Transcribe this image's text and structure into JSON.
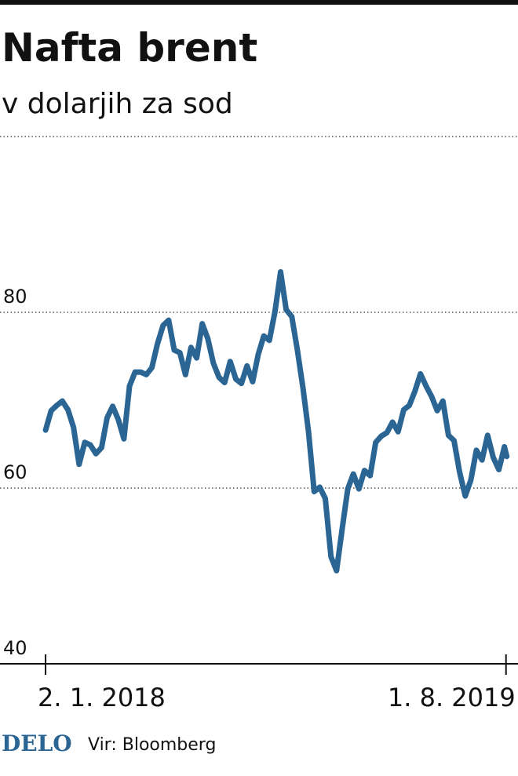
{
  "chart_data": {
    "type": "line",
    "title": "Nafta brent",
    "subtitle": "v dolarjih za sod",
    "source": "Vir: Bloomberg",
    "logo": "DELO",
    "x": [
      "2018-01-02",
      "2018-01-09",
      "2018-01-16",
      "2018-01-23",
      "2018-01-30",
      "2018-02-06",
      "2018-02-13",
      "2018-02-20",
      "2018-02-27",
      "2018-03-06",
      "2018-03-13",
      "2018-03-20",
      "2018-03-27",
      "2018-04-03",
      "2018-04-10",
      "2018-04-17",
      "2018-04-24",
      "2018-05-01",
      "2018-05-08",
      "2018-05-15",
      "2018-05-22",
      "2018-05-29",
      "2018-06-05",
      "2018-06-12",
      "2018-06-19",
      "2018-06-26",
      "2018-07-03",
      "2018-07-10",
      "2018-07-17",
      "2018-07-24",
      "2018-07-31",
      "2018-08-07",
      "2018-08-14",
      "2018-08-21",
      "2018-08-28",
      "2018-09-04",
      "2018-09-11",
      "2018-09-18",
      "2018-09-25",
      "2018-10-02",
      "2018-10-09",
      "2018-10-16",
      "2018-10-23",
      "2018-10-30",
      "2018-11-06",
      "2018-11-13",
      "2018-11-20",
      "2018-11-27",
      "2018-12-04",
      "2018-12-11",
      "2018-12-18",
      "2018-12-25",
      "2019-01-01",
      "2019-01-08",
      "2019-01-15",
      "2019-01-22",
      "2019-01-29",
      "2019-02-05",
      "2019-02-12",
      "2019-02-19",
      "2019-02-26",
      "2019-03-05",
      "2019-03-12",
      "2019-03-19",
      "2019-03-26",
      "2019-04-02",
      "2019-04-09",
      "2019-04-16",
      "2019-04-23",
      "2019-04-30",
      "2019-05-07",
      "2019-05-14",
      "2019-05-21",
      "2019-05-28",
      "2019-06-04",
      "2019-06-11",
      "2019-06-18",
      "2019-06-25",
      "2019-07-02",
      "2019-07-09",
      "2019-07-16",
      "2019-07-23",
      "2019-07-30",
      "2019-08-02"
    ],
    "series": [
      {
        "color": "#2b6594",
        "values": [
          66.6,
          68.8,
          69.4,
          69.9,
          68.9,
          66.9,
          62.7,
          65.2,
          64.9,
          63.9,
          64.6,
          68.0,
          69.3,
          67.8,
          65.6,
          71.6,
          73.2,
          73.2,
          72.9,
          73.7,
          76.4,
          78.5,
          79.1,
          75.7,
          75.4,
          72.9,
          76.0,
          74.8,
          78.7,
          77.0,
          74.2,
          72.6,
          72.0,
          74.4,
          72.4,
          71.9,
          73.9,
          72.1,
          75.2,
          77.3,
          76.8,
          80.1,
          84.6,
          80.3,
          79.5,
          75.7,
          71.4,
          66.4,
          59.6,
          60.1,
          58.8,
          52.2,
          50.6,
          55.3,
          59.9,
          61.6,
          59.9,
          62.0,
          61.4,
          65.2,
          65.9,
          66.3,
          67.5,
          66.4,
          68.9,
          69.4,
          71.0,
          73.0,
          71.6,
          70.4,
          68.8,
          69.9,
          66.0,
          65.4,
          61.8,
          59.1,
          60.9,
          64.3,
          63.2,
          66.0,
          63.5,
          62.1,
          64.7,
          63.6
        ]
      }
    ],
    "xlim": [
      "2017-11-06",
      "2019-08-16"
    ],
    "xticks": [
      {
        "value": "2018-01-02",
        "label": "2. 1. 2018"
      },
      {
        "value": "2019-08-01",
        "label": "1. 8. 2019"
      }
    ],
    "ylim": [
      40,
      100
    ],
    "yticks": [
      40,
      60,
      80
    ],
    "grid": true
  }
}
